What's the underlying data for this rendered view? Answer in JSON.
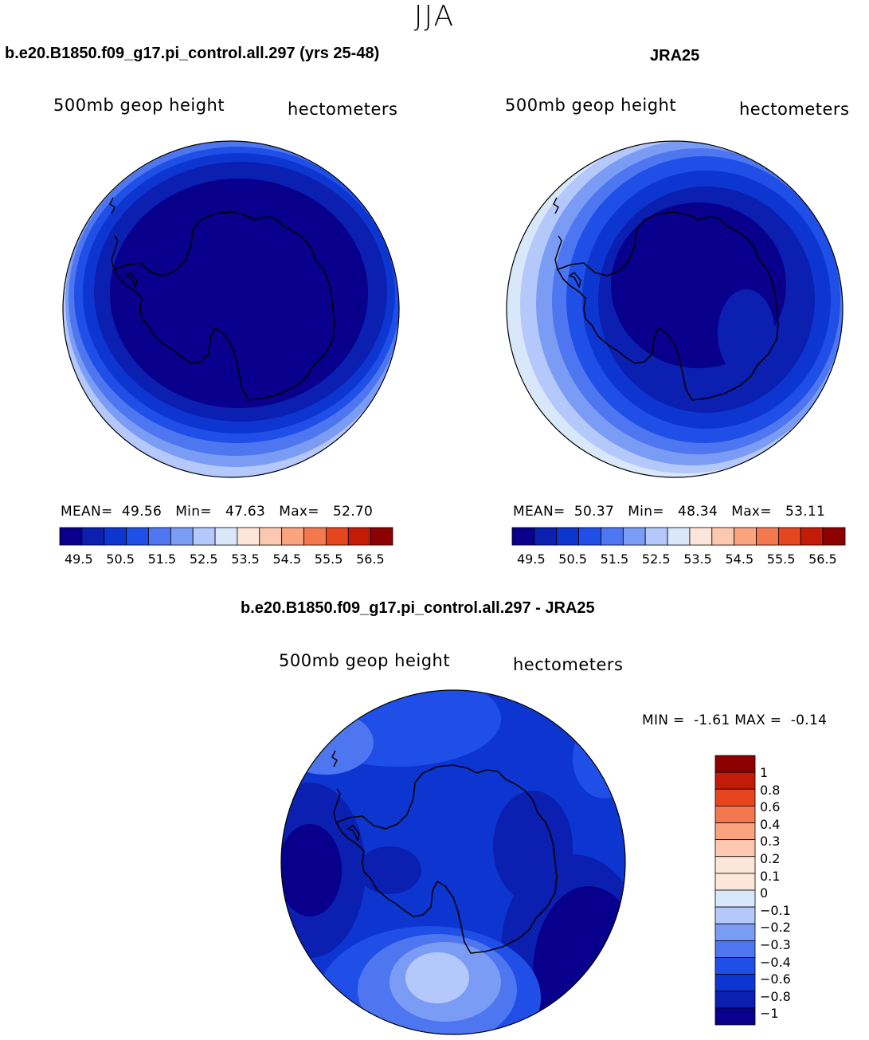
{
  "season": "JJA",
  "colors": {
    "fill_scale_14": [
      "#08008c",
      "#0b1fb0",
      "#0d36d1",
      "#1f4fe6",
      "#4d76f0",
      "#7b9cf4",
      "#b4c8fb",
      "#d9e7fb",
      "#fde6d9",
      "#fcc8b0",
      "#f9a47e",
      "#f4784f",
      "#e5461f",
      "#c41a08",
      "#8c0000"
    ],
    "diff_scale": [
      "#08008c",
      "#0b1fb0",
      "#0d36d1",
      "#1f4fe6",
      "#4d76f0",
      "#7b9cf4",
      "#b4c8fb",
      "#d9e7fb",
      "#fde6d9",
      "#fcc8b0",
      "#f9a47e",
      "#f4784f",
      "#e5461f",
      "#c41a08",
      "#8c0000"
    ]
  },
  "chart_data": [
    {
      "type": "heatmap",
      "title": "b.e20.B1850.f09_g17.pi_control.all.297 (yrs 25-48)",
      "variable": "500mb geop height",
      "units": "hectometers",
      "projection": "south polar stereographic",
      "stats": {
        "mean_label": "MEAN=",
        "mean": "49.56",
        "min_label": "Min=",
        "min": "47.63",
        "max_label": "Max=",
        "max": "52.70"
      },
      "colorbar": {
        "orientation": "horizontal",
        "ticks": [
          "49.5",
          "50.5",
          "51.5",
          "52.5",
          "53.5",
          "54.5",
          "55.5",
          "56.5"
        ]
      }
    },
    {
      "type": "heatmap",
      "title": "JRA25",
      "variable": "500mb geop height",
      "units": "hectometers",
      "projection": "south polar stereographic",
      "stats": {
        "mean_label": "MEAN=",
        "mean": "50.37",
        "min_label": "Min=",
        "min": "48.34",
        "max_label": "Max=",
        "max": "53.11"
      },
      "colorbar": {
        "orientation": "horizontal",
        "ticks": [
          "49.5",
          "50.5",
          "51.5",
          "52.5",
          "53.5",
          "54.5",
          "55.5",
          "56.5"
        ]
      }
    },
    {
      "type": "heatmap",
      "title": "b.e20.B1850.f09_g17.pi_control.all.297 - JRA25",
      "variable": "500mb geop height",
      "units": "hectometers",
      "projection": "south polar stereographic",
      "stats": {
        "min_label": "MIN =",
        "min": "-1.61",
        "max_label": "MAX =",
        "max": "-0.14"
      },
      "colorbar": {
        "orientation": "vertical",
        "ticks": [
          "1",
          "0.8",
          "0.6",
          "0.4",
          "0.3",
          "0.2",
          "0.1",
          "0",
          "−0.1",
          "−0.2",
          "−0.3",
          "−0.4",
          "−0.6",
          "−0.8",
          "−1"
        ]
      }
    }
  ]
}
